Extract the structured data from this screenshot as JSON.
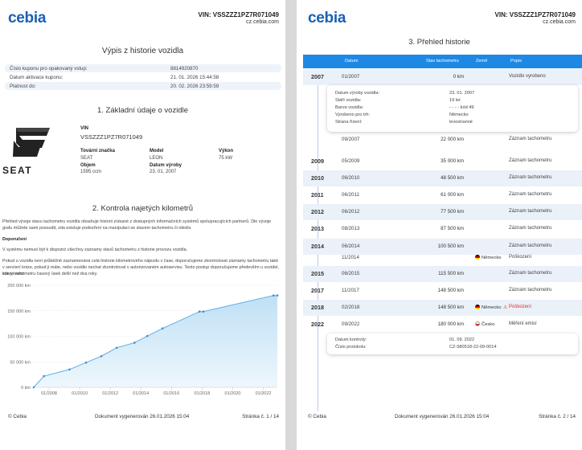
{
  "page1": {
    "logo": "cebia",
    "vin_header": "VIN: VSSZZZ1PZ7R071049",
    "site": "cz.cebia.com",
    "title": "Výpis z historie vozidla",
    "coupon": [
      {
        "key": "Číslo kuponu pro opakovaný vstup:",
        "value": "8814920870"
      },
      {
        "key": "Datum aktivace kuponu:",
        "value": "21. 01. 2026 15:44:58"
      },
      {
        "key": "Platnost do:",
        "value": "20. 02. 2026 23:59:59"
      }
    ],
    "section1": "1. Základní údaje o vozidle",
    "brand_word": "SEAT",
    "vin_label": "VIN",
    "vin_value": "VSSZZZ1PZ7R071049",
    "make_label": "Tovární značka",
    "make_value": "SEAT",
    "model_label": "Model",
    "model_value": "LEON",
    "power_label": "Výkon",
    "power_value": "75 kW",
    "volume_label": "Objem",
    "volume_value": "1595 ccm",
    "year_label": "Datum výroby",
    "year_value": "23. 01. 2007",
    "section2": "2. Kontrola najetých kilometrů",
    "para1a": "Přehled vývoje stavu tachometru vozidla obsahuje historii získané z dostupných informačních systémů spolupracujících partnerů. Dle vývoje",
    "para1b": "grafu můžete sami posoudit, zda existuje podezření na manipulaci se stavem tachometru či nikoliv.",
    "warn_title": "Doporučení",
    "para2": "V systému nemusí být k dispozici všechny záznamy stavů tachometru z historie provozu vozidla.",
    "para3a": "Pokud u vozidla není průběžně zaznamenaná celá historie kilometrového nájezdu v čase, doporučujeme zkontrolovat záznamy tachometru také",
    "para3b": "v servisní knize, pokud ji máte, nebo vozidlo nechat zkontrolovat v autorizovaném autoservisu. Tento postup doporučujeme především u vozidel, kde je mezi",
    "para3c": "stavy tachometru časový úsek delší než dva roky.",
    "footer_left": "© Cebia",
    "footer_mid": "Dokument vygenerován 26.01.2026 15:04",
    "footer_right": "Stránka č. 1 / 14"
  },
  "chart_data": {
    "type": "area",
    "title": "",
    "xlabel": "",
    "ylabel": "",
    "x_ticks": [
      "01/2008",
      "01/2010",
      "01/2012",
      "01/2014",
      "01/2016",
      "01/2018",
      "01/2020",
      "01/2022"
    ],
    "y_ticks": [
      "0 km",
      "50 000 km",
      "100 000 km",
      "150 000 km",
      "200 000 km"
    ],
    "ylim": [
      0,
      200000
    ],
    "xlim": [
      "2007-01",
      "2022-12"
    ],
    "points": [
      {
        "x": "2007-01",
        "y": 0
      },
      {
        "x": "2007-09",
        "y": 22000
      },
      {
        "x": "2009-05",
        "y": 35000
      },
      {
        "x": "2010-06",
        "y": 48500
      },
      {
        "x": "2011-06",
        "y": 61000
      },
      {
        "x": "2012-06",
        "y": 77500
      },
      {
        "x": "2013-08",
        "y": 87500
      },
      {
        "x": "2014-06",
        "y": 100500
      },
      {
        "x": "2015-06",
        "y": 115500
      },
      {
        "x": "2017-11",
        "y": 148500
      },
      {
        "x": "2018-02",
        "y": 148500
      },
      {
        "x": "2022-09",
        "y": 180000
      },
      {
        "x": "2022-12",
        "y": 180000
      }
    ],
    "color": "#5aaee6",
    "grid": true
  },
  "page2": {
    "logo": "cebia",
    "vin_header": "VIN: VSSZZZ1PZ7R071049",
    "site": "cz.cebia.com",
    "title": "3. Přehled historie",
    "col_date": "Datum",
    "col_km": "Stav tachometru",
    "col_country": "Země",
    "col_desc": "Popis",
    "rows": [
      {
        "year": "2007",
        "date": "01/2007",
        "km": "0 km",
        "country": "",
        "desc": "Vozidlo vyrobeno"
      },
      {
        "year": "",
        "date": "09/2007",
        "km": "22 000 km",
        "country": "",
        "desc": "Záznam tachometru"
      },
      {
        "year": "2009",
        "date": "05/2009",
        "km": "35 000 km",
        "country": "",
        "desc": "Záznam tachometru"
      },
      {
        "year": "2010",
        "date": "06/2010",
        "km": "48 500 km",
        "country": "",
        "desc": "Záznam tachometru"
      },
      {
        "year": "2011",
        "date": "06/2011",
        "km": "61 000 km",
        "country": "",
        "desc": "Záznam tachometru"
      },
      {
        "year": "2012",
        "date": "06/2012",
        "km": "77 500 km",
        "country": "",
        "desc": "Záznam tachometru"
      },
      {
        "year": "2013",
        "date": "08/2013",
        "km": "87 500 km",
        "country": "",
        "desc": "Záznam tachometru"
      },
      {
        "year": "2014",
        "date": "06/2014",
        "km": "100 500 km",
        "country": "",
        "desc": "Záznam tachometru"
      },
      {
        "year": "",
        "date": "11/2014",
        "km": "",
        "country": "Německo",
        "desc": "Poškození"
      },
      {
        "year": "2015",
        "date": "06/2015",
        "km": "115 500 km",
        "country": "",
        "desc": "Záznam tachometru"
      },
      {
        "year": "2017",
        "date": "11/2017",
        "km": "148 500 km",
        "country": "",
        "desc": "Záznam tachometru"
      },
      {
        "year": "2018",
        "date": "02/2018",
        "km": "148 500 km",
        "country": "Německo",
        "desc": "Poškození"
      },
      {
        "year": "2022",
        "date": "09/2022",
        "km": "180 000 km",
        "country": "Česko",
        "desc": "Měření emisí"
      }
    ],
    "card1": [
      {
        "key": "Datum výroby vozidla:",
        "value": "23. 01. 2007"
      },
      {
        "key": "Stáří vozidla:",
        "value": "19 let"
      },
      {
        "key": "Barva vozidla:",
        "value": "- - - - kód 49"
      },
      {
        "key": "Vyrobeno pro trh:",
        "value": "Německo"
      },
      {
        "key": "Strana řízení:",
        "value": "levostranné"
      }
    ],
    "card2": [
      {
        "key": "Datum kontroly:",
        "value": "01. 09. 2022"
      },
      {
        "key": "Číslo protokolu:",
        "value": "CZ-580518-22-09-0014"
      }
    ],
    "footer_left": "© Cebia",
    "footer_mid": "Dokument vygenerován 26.01.2026 15:04",
    "footer_right": "Stránka č. 2 / 14"
  }
}
